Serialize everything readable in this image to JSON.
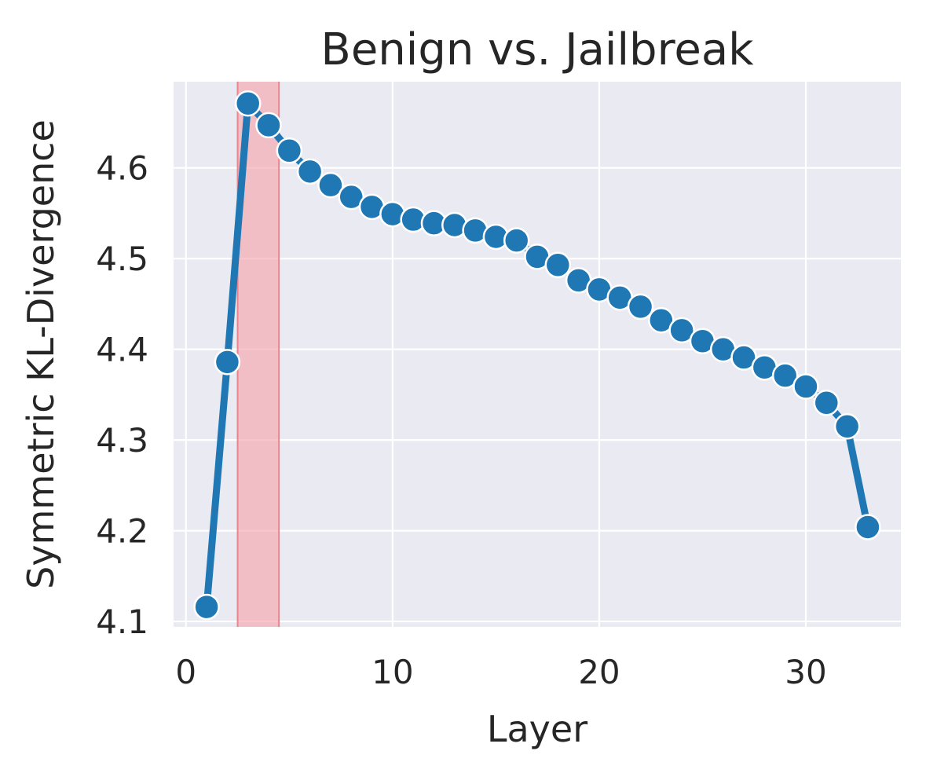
{
  "chart_data": {
    "type": "line",
    "title": "Benign vs. Jailbreak",
    "xlabel": "Layer",
    "ylabel": "Symmetric KL-Divergence",
    "xlim": [
      -0.6,
      34.6
    ],
    "ylim": [
      4.094,
      4.695
    ],
    "xticks": [
      0,
      10,
      20,
      30
    ],
    "yticks": [
      4.1,
      4.2,
      4.3,
      4.4,
      4.5,
      4.6
    ],
    "grid": true,
    "background": "#eaeaf2",
    "line_color": "#1f77b4",
    "highlight": {
      "x_start": 2.5,
      "x_end": 4.5,
      "color": "#f4a6ad"
    },
    "series": [
      {
        "x": [
          1,
          2,
          3,
          4,
          5,
          6,
          7,
          8,
          9,
          10,
          11,
          12,
          13,
          14,
          15,
          16,
          17,
          18,
          19,
          20,
          21,
          22,
          23,
          24,
          25,
          26,
          27,
          28,
          29,
          30,
          31,
          32,
          33
        ],
        "values": [
          4.116,
          4.386,
          4.671,
          4.647,
          4.619,
          4.596,
          4.581,
          4.568,
          4.557,
          4.549,
          4.543,
          4.539,
          4.537,
          4.531,
          4.524,
          4.52,
          4.502,
          4.493,
          4.476,
          4.466,
          4.457,
          4.447,
          4.432,
          4.421,
          4.409,
          4.4,
          4.391,
          4.38,
          4.371,
          4.359,
          4.341,
          4.315,
          4.204
        ]
      }
    ]
  }
}
